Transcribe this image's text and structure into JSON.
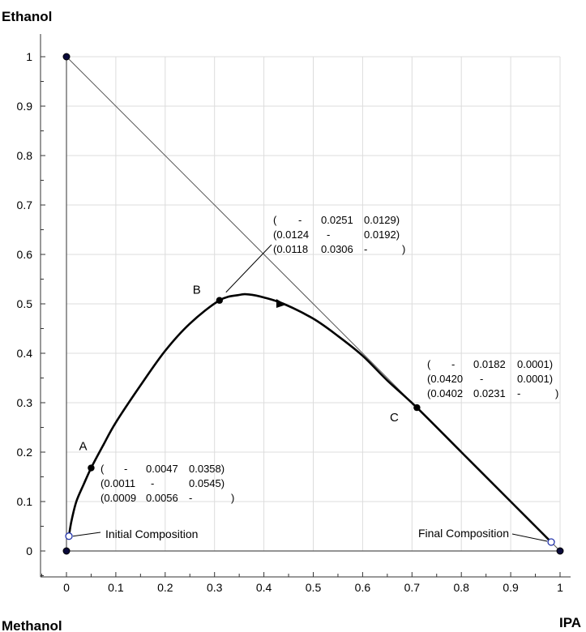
{
  "chart_data": {
    "type": "ternary-line",
    "corners": {
      "top": "Ethanol",
      "bottom_left": "Methanol",
      "bottom_right": "IPA"
    },
    "xlim": [
      0,
      1
    ],
    "ylim": [
      0,
      1
    ],
    "x_ticks": [
      "0",
      "0.1",
      "0.2",
      "0.3",
      "0.4",
      "0.5",
      "0.6",
      "0.7",
      "0.8",
      "0.9",
      "1"
    ],
    "y_ticks": [
      "0",
      "0.1",
      "0.2",
      "0.3",
      "0.4",
      "0.5",
      "0.6",
      "0.7",
      "0.8",
      "0.9",
      "1"
    ],
    "grid": true,
    "vertices": [
      {
        "x": 0,
        "y": 0
      },
      {
        "x": 1,
        "y": 0
      },
      {
        "x": 0,
        "y": 1
      }
    ],
    "trajectory": [
      {
        "x": 0.005,
        "y": 0.03
      },
      {
        "x": 0.01,
        "y": 0.06
      },
      {
        "x": 0.02,
        "y": 0.1
      },
      {
        "x": 0.035,
        "y": 0.135
      },
      {
        "x": 0.05,
        "y": 0.168
      },
      {
        "x": 0.075,
        "y": 0.215
      },
      {
        "x": 0.1,
        "y": 0.26
      },
      {
        "x": 0.15,
        "y": 0.335
      },
      {
        "x": 0.2,
        "y": 0.405
      },
      {
        "x": 0.25,
        "y": 0.46
      },
      {
        "x": 0.31,
        "y": 0.507
      },
      {
        "x": 0.35,
        "y": 0.518
      },
      {
        "x": 0.37,
        "y": 0.519
      },
      {
        "x": 0.4,
        "y": 0.513
      },
      {
        "x": 0.44,
        "y": 0.5
      },
      {
        "x": 0.5,
        "y": 0.47
      },
      {
        "x": 0.55,
        "y": 0.435
      },
      {
        "x": 0.6,
        "y": 0.395
      },
      {
        "x": 0.65,
        "y": 0.345
      },
      {
        "x": 0.71,
        "y": 0.29
      },
      {
        "x": 0.8,
        "y": 0.2
      },
      {
        "x": 0.9,
        "y": 0.1
      },
      {
        "x": 0.95,
        "y": 0.05
      },
      {
        "x": 0.982,
        "y": 0.018
      }
    ],
    "direction_arrow": {
      "x": 0.44,
      "y": 0.5
    },
    "points": [
      {
        "label": "A",
        "x": 0.05,
        "y": 0.168
      },
      {
        "label": "B",
        "x": 0.31,
        "y": 0.507
      },
      {
        "label": "C",
        "x": 0.71,
        "y": 0.29
      }
    ],
    "annotations": [
      {
        "text": "Initial Composition",
        "x": 0.005,
        "y": 0.03
      },
      {
        "text": "Final Composition",
        "x": 0.982,
        "y": 0.018
      }
    ],
    "matrices": [
      {
        "point": "A",
        "rows": [
          [
            "(",
            "-",
            "0.0047",
            "0.0358)"
          ],
          [
            "(0.0011",
            "-",
            "0.0545)"
          ],
          [
            "(0.0009",
            "0.0056",
            "-",
            ")"
          ]
        ]
      },
      {
        "point": "B",
        "rows": [
          [
            "(",
            "-",
            "0.0251",
            "0.0129)"
          ],
          [
            "(0.0124",
            "-",
            "0.0192)"
          ],
          [
            "(0.0118",
            "0.0306",
            "-",
            ")"
          ]
        ]
      },
      {
        "point": "C",
        "rows": [
          [
            "(",
            "-",
            "0.0182",
            "0.0001)"
          ],
          [
            "(0.0420",
            "-",
            "0.0001)"
          ],
          [
            "(0.0402",
            "0.0231",
            "-",
            ")"
          ]
        ]
      }
    ]
  }
}
